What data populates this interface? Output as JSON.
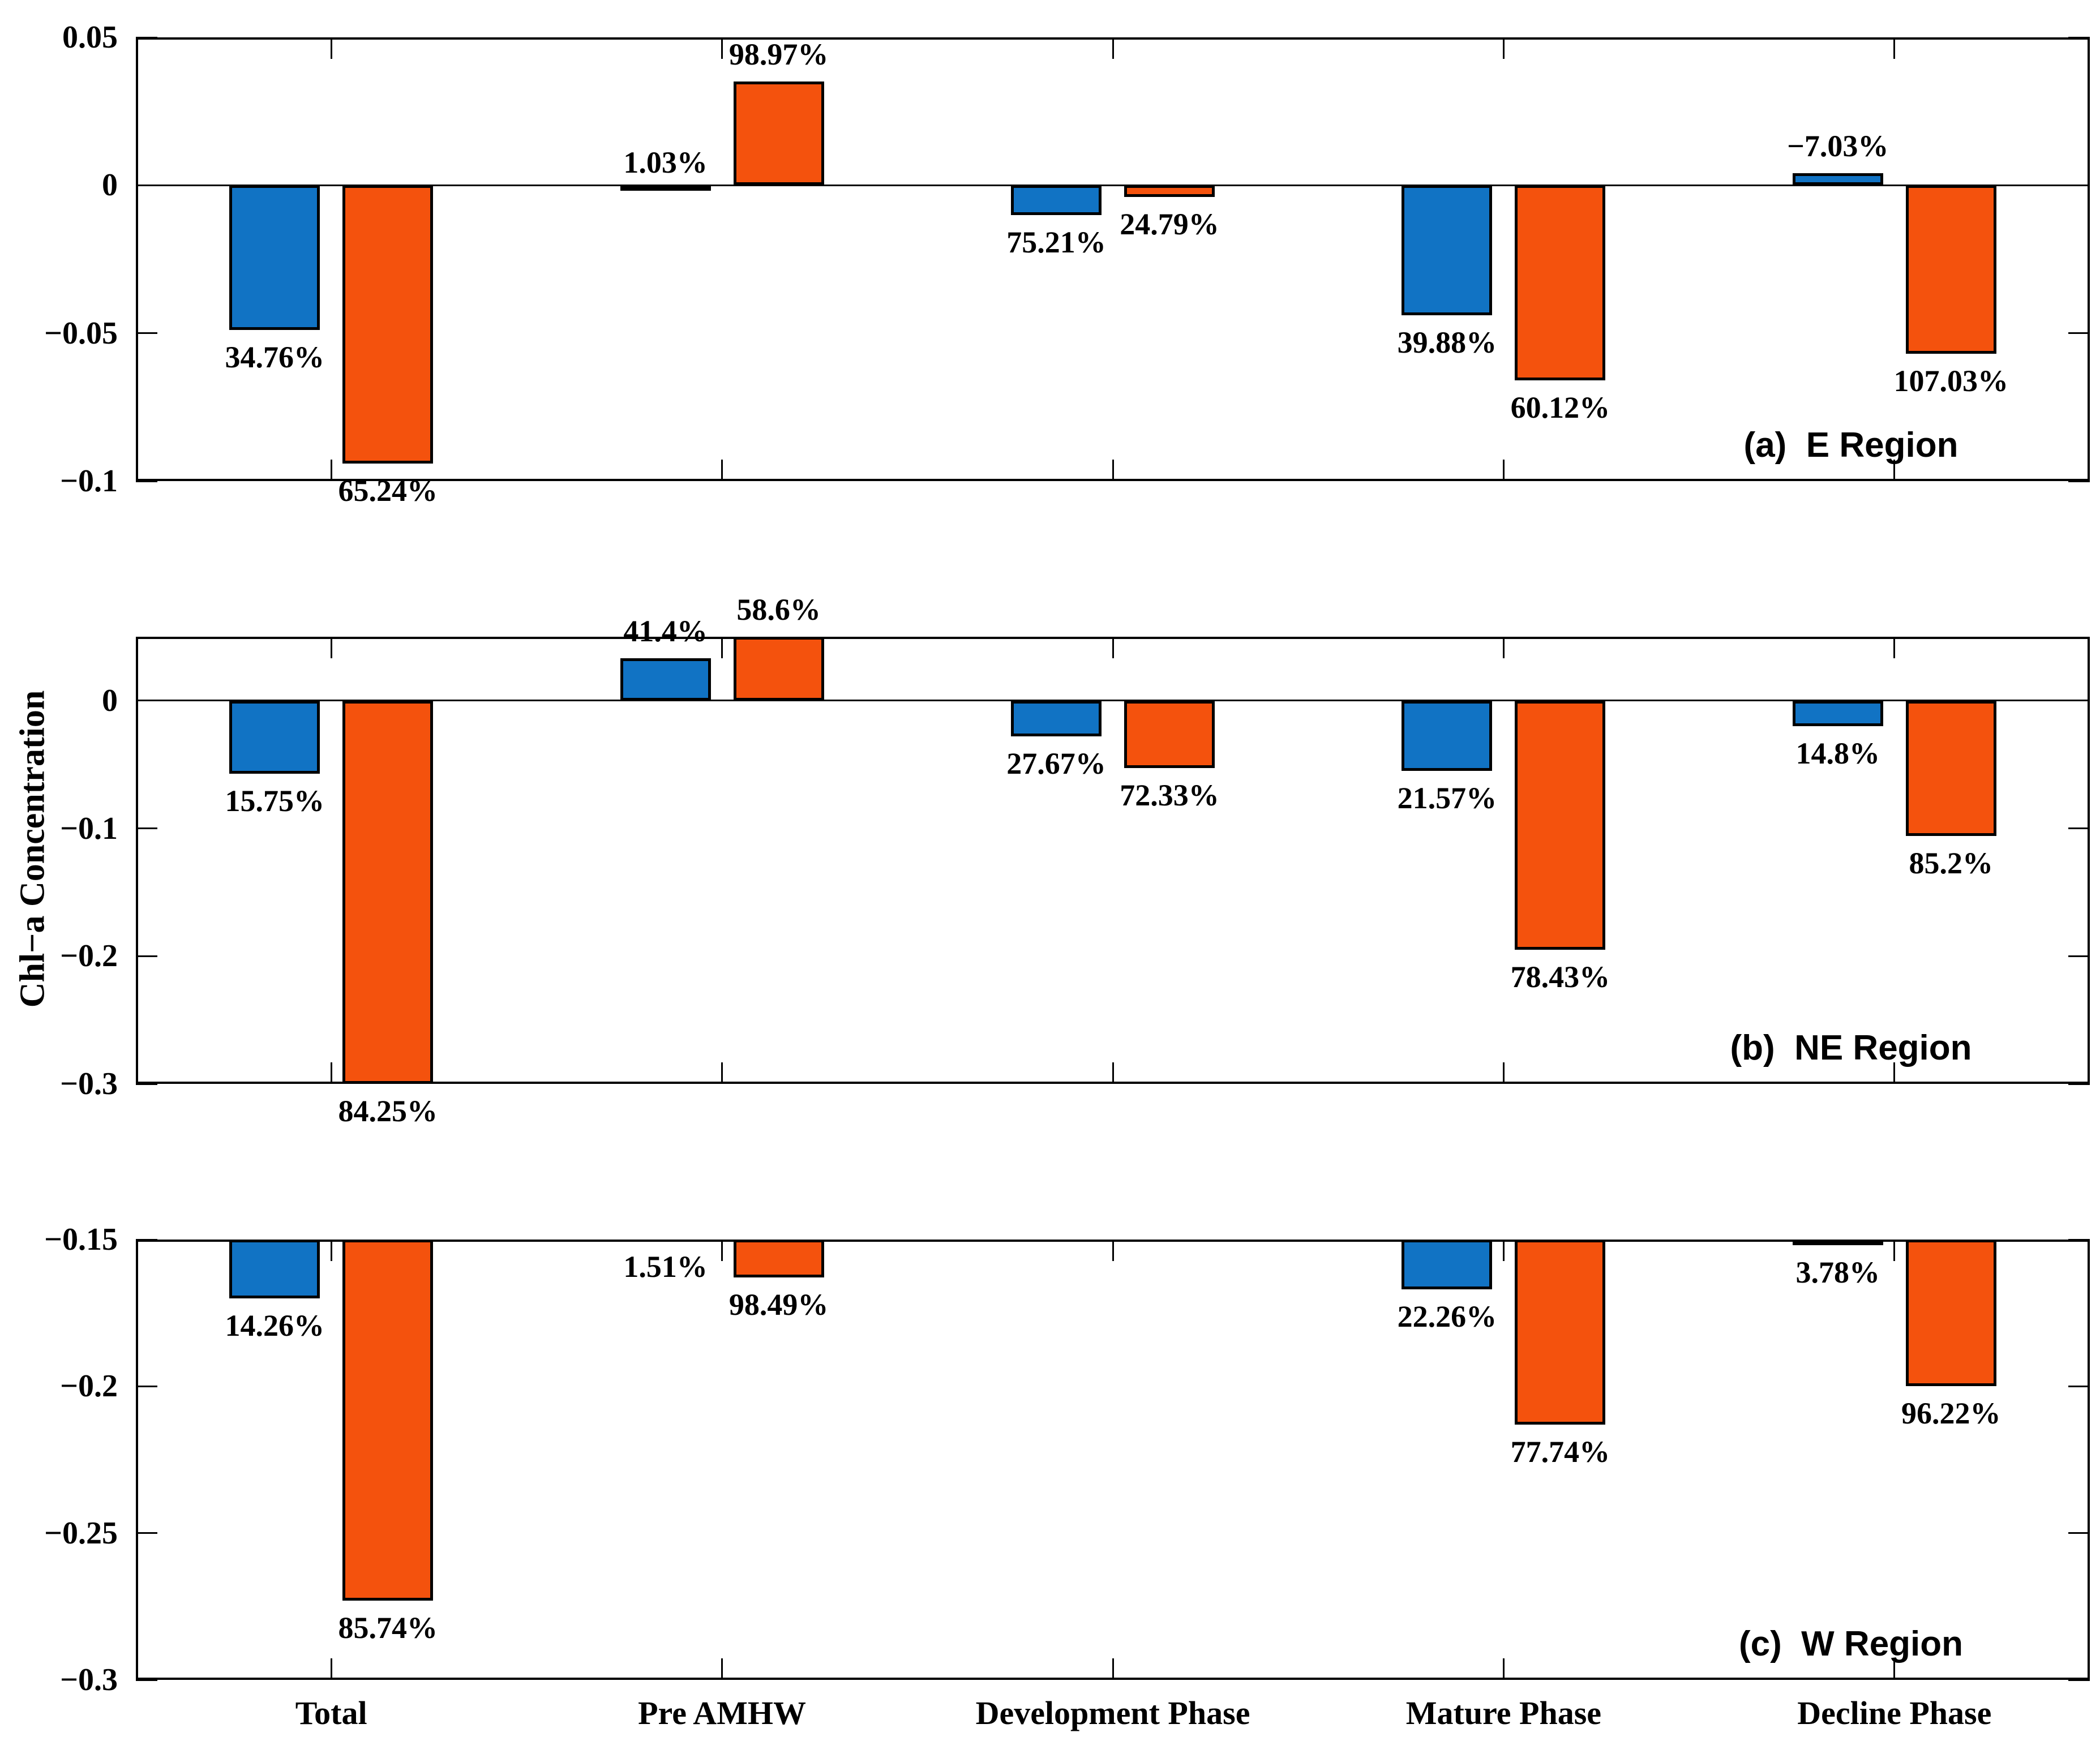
{
  "figure": {
    "ylabel": "Chl−a Concentration",
    "background": "#ffffff",
    "colors": {
      "blue": "#1173c4",
      "orange": "#f4520d",
      "outline": "#000000"
    }
  },
  "chart_data": [
    {
      "type": "bar",
      "panel": "a",
      "region_label": "(a)  E Region",
      "categories": [
        "Total",
        "Pre AMHW",
        "Development Phase",
        "Mature Phase",
        "Decline Phase"
      ],
      "xlabel": "",
      "ylabel": "Chl−a Concentration",
      "ylim": [
        -0.1,
        0.05
      ],
      "grid": false,
      "legend": "none",
      "yticks": [
        {
          "v": 0.05,
          "label": "0.05"
        },
        {
          "v": 0,
          "label": "0"
        },
        {
          "v": -0.05,
          "label": "−0.05"
        },
        {
          "v": -0.1,
          "label": "−0.1"
        }
      ],
      "series": [
        {
          "name": "blue",
          "values": [
            -0.049,
            -0.0015,
            -0.01,
            -0.044,
            0.004
          ],
          "labels": [
            "34.76%",
            "1.03%",
            "75.21%",
            "39.88%",
            "−7.03%"
          ],
          "label_side": [
            "below",
            "above",
            "below",
            "below",
            "above"
          ]
        },
        {
          "name": "orange",
          "values": [
            -0.094,
            0.035,
            -0.004,
            -0.066,
            -0.057
          ],
          "labels": [
            "65.24%",
            "98.97%",
            "24.79%",
            "60.12%",
            "107.03%"
          ],
          "label_side": [
            "below",
            "above",
            "below",
            "below",
            "below"
          ]
        }
      ]
    },
    {
      "type": "bar",
      "panel": "b",
      "region_label": "(b)  NE Region",
      "categories": [
        "Total",
        "Pre AMHW",
        "Development Phase",
        "Mature Phase",
        "Decline Phase"
      ],
      "xlabel": "",
      "ylabel": "Chl−a Concentration",
      "ylim": [
        -0.3,
        0.05
      ],
      "grid": false,
      "legend": "none",
      "yticks": [
        {
          "v": 0,
          "label": "0"
        },
        {
          "v": -0.1,
          "label": "−0.1"
        },
        {
          "v": -0.2,
          "label": "−0.2"
        },
        {
          "v": -0.3,
          "label": "−0.3"
        }
      ],
      "series": [
        {
          "name": "blue",
          "values": [
            -0.057,
            0.033,
            -0.028,
            -0.055,
            -0.02
          ],
          "labels": [
            "15.75%",
            "41.4%",
            "27.67%",
            "21.57%",
            "14.8%"
          ],
          "label_side": [
            "below",
            "above",
            "below",
            "below",
            "below"
          ]
        },
        {
          "name": "orange",
          "values": [
            -0.3,
            0.05,
            -0.053,
            -0.195,
            -0.106
          ],
          "labels": [
            "84.25%",
            "58.6%",
            "72.33%",
            "78.43%",
            "85.2%"
          ],
          "label_side": [
            "below",
            "above",
            "below",
            "below",
            "below"
          ]
        }
      ]
    },
    {
      "type": "bar",
      "panel": "c",
      "region_label": "(c)  W Region",
      "categories": [
        "Total",
        "Pre AMHW",
        "Development Phase",
        "Mature Phase",
        "Decline Phase"
      ],
      "xlabel": "",
      "ylabel": "Chl−a Concentration",
      "ylim": [
        -0.3,
        -0.15
      ],
      "grid": false,
      "legend": "none",
      "yticks": [
        {
          "v": -0.15,
          "label": "−0.15"
        },
        {
          "v": -0.2,
          "label": "−0.2"
        },
        {
          "v": -0.25,
          "label": "−0.25"
        },
        {
          "v": -0.3,
          "label": "−0.3"
        }
      ],
      "series": [
        {
          "name": "blue",
          "values": [
            -0.17,
            -0.1495,
            null,
            -0.167,
            -0.152
          ],
          "labels": [
            "14.26%",
            "1.51%",
            null,
            "22.26%",
            "3.78%"
          ],
          "label_side": [
            "below",
            "below",
            "below",
            "below",
            "below"
          ]
        },
        {
          "name": "orange",
          "values": [
            -0.273,
            -0.163,
            null,
            -0.213,
            -0.2
          ],
          "labels": [
            "85.74%",
            "98.49%",
            null,
            "77.74%",
            "96.22%"
          ],
          "label_side": [
            "below",
            "below",
            "below",
            "below",
            "below"
          ]
        }
      ]
    }
  ]
}
